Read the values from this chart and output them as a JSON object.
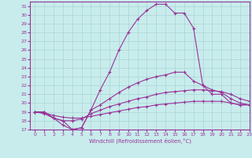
{
  "xlabel": "Windchill (Refroidissement éolien,°C)",
  "xlim": [
    -0.5,
    23
  ],
  "ylim": [
    17,
    31.5
  ],
  "yticks": [
    17,
    18,
    19,
    20,
    21,
    22,
    23,
    24,
    25,
    26,
    27,
    28,
    29,
    30,
    31
  ],
  "xticks": [
    0,
    1,
    2,
    3,
    4,
    5,
    6,
    7,
    8,
    9,
    10,
    11,
    12,
    13,
    14,
    15,
    16,
    17,
    18,
    19,
    20,
    21,
    22,
    23
  ],
  "bg_color": "#c8ecec",
  "grid_color": "#aad4d4",
  "line_color": "#993399",
  "lines": [
    {
      "x": [
        0,
        1,
        2,
        3,
        4,
        5,
        6,
        7,
        8,
        9,
        10,
        11,
        12,
        13,
        14,
        15,
        16,
        17,
        18,
        19,
        20,
        21,
        22,
        23
      ],
      "y": [
        19,
        19,
        18.3,
        18.0,
        17.0,
        17.2,
        19.2,
        21.5,
        23.5,
        26,
        28,
        29.5,
        30.5,
        31.2,
        31.2,
        30.2,
        30.2,
        28.5,
        22,
        21,
        21,
        20,
        19.8,
        19.8
      ]
    },
    {
      "x": [
        0,
        1,
        2,
        3,
        4,
        5,
        6,
        7,
        8,
        9,
        10,
        11,
        12,
        13,
        14,
        15,
        16,
        17,
        18,
        19,
        20,
        21,
        22,
        23
      ],
      "y": [
        19,
        19,
        18.3,
        17.5,
        17.0,
        17.2,
        19.2,
        19.8,
        20.5,
        21.2,
        21.8,
        22.3,
        22.7,
        23.0,
        23.2,
        23.5,
        23.5,
        22.5,
        22.0,
        21.5,
        21.2,
        20.5,
        20.0,
        19.8
      ]
    },
    {
      "x": [
        0,
        1,
        2,
        3,
        4,
        5,
        6,
        7,
        8,
        9,
        10,
        11,
        12,
        13,
        14,
        15,
        16,
        17,
        18,
        19,
        20,
        21,
        22,
        23
      ],
      "y": [
        19,
        18.8,
        18.3,
        18.0,
        18.0,
        18.2,
        18.8,
        19.2,
        19.6,
        19.9,
        20.2,
        20.5,
        20.7,
        21.0,
        21.2,
        21.3,
        21.4,
        21.5,
        21.5,
        21.4,
        21.3,
        21.0,
        20.5,
        20.2
      ]
    },
    {
      "x": [
        0,
        1,
        2,
        3,
        4,
        5,
        6,
        7,
        8,
        9,
        10,
        11,
        12,
        13,
        14,
        15,
        16,
        17,
        18,
        19,
        20,
        21,
        22,
        23
      ],
      "y": [
        19,
        18.9,
        18.6,
        18.4,
        18.3,
        18.3,
        18.5,
        18.7,
        18.9,
        19.1,
        19.3,
        19.5,
        19.6,
        19.8,
        19.9,
        20.0,
        20.1,
        20.2,
        20.2,
        20.2,
        20.2,
        20.0,
        19.8,
        19.8
      ]
    }
  ]
}
